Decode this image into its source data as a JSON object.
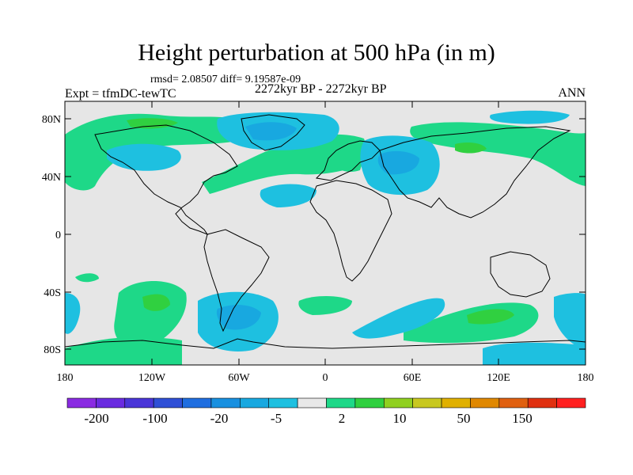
{
  "title": "Height perturbation at 500 hPa (in m)",
  "stats": "rmsd= 2.08507  diff= 9.19587e-09",
  "expt": "Expt = tfmDC-tewTC",
  "period": "2272kyr BP - 2272kyr BP",
  "season": "ANN",
  "lat_ticks": [
    "80N",
    "40N",
    "0",
    "40S",
    "80S"
  ],
  "lon_ticks": [
    "180",
    "120W",
    "60W",
    "0",
    "60E",
    "120E",
    "180"
  ],
  "colorbar": {
    "labels": [
      "-200",
      "-100",
      "-20",
      "-5",
      "2",
      "10",
      "50",
      "150"
    ],
    "colors": [
      "#8a2be2",
      "#6a2be0",
      "#4a35d8",
      "#2f4fd6",
      "#1f6ee0",
      "#1890e0",
      "#18a8e0",
      "#1ec0e0",
      "#e8e8e8",
      "#1ed888",
      "#30d040",
      "#90d020",
      "#c8c820",
      "#e0b000",
      "#e08800",
      "#e06010",
      "#e03010",
      "#ff2020"
    ]
  },
  "colors": {
    "neutral": "#e6e6e6",
    "blue": "#1ec0e0",
    "blue_dark": "#18a8e0",
    "green": "#1ed888",
    "green_dark": "#30d040"
  }
}
